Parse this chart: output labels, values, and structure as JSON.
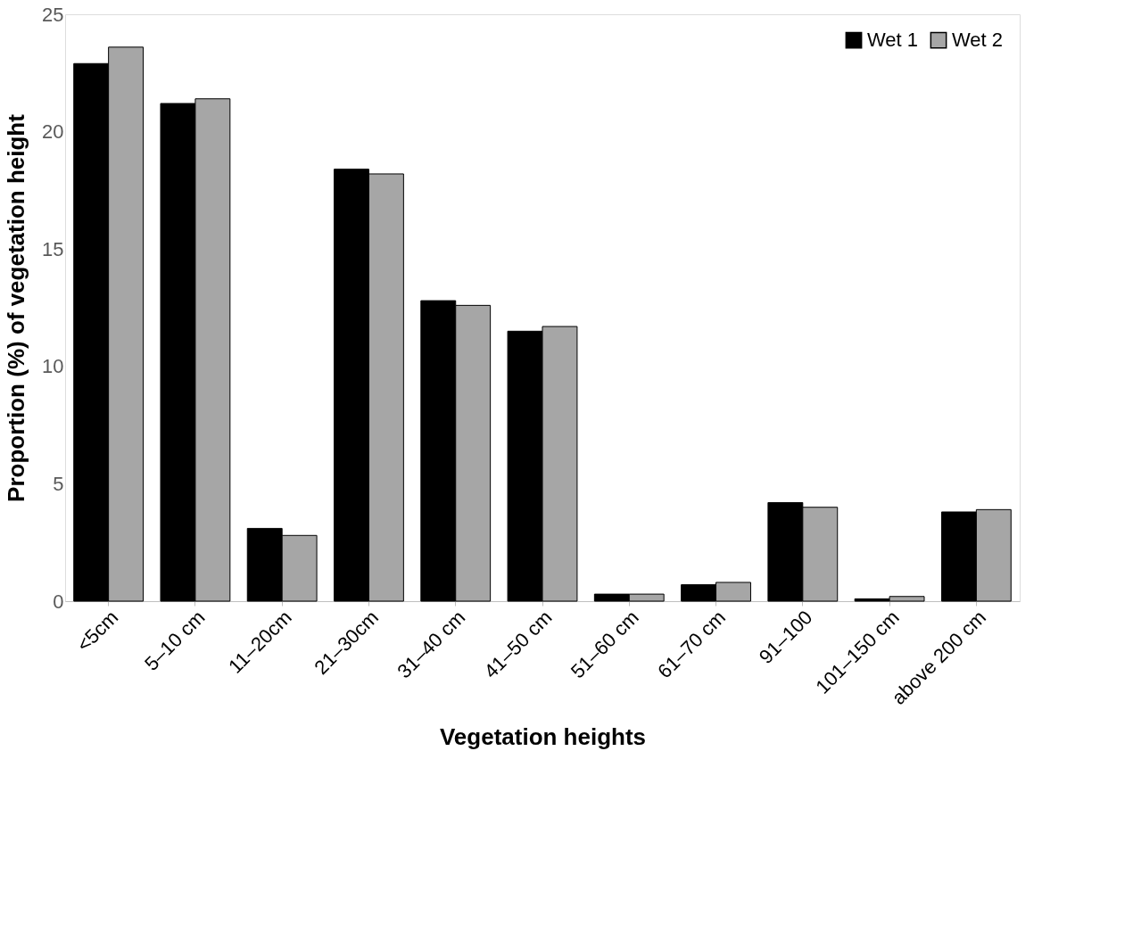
{
  "chart_data": {
    "type": "bar",
    "xlabel": "Vegetation heights",
    "ylabel": "Proportion (%) of vegetation height",
    "categories": [
      "<5cm",
      "5–10 cm",
      "11–20cm",
      "21–30cm",
      "31–40 cm",
      "41–50 cm",
      "51–60 cm",
      "61–70 cm",
      "91–100",
      "101–150 cm",
      "above 200 cm"
    ],
    "series": [
      {
        "name": "Wet 1",
        "color": "#000000",
        "values": [
          22.9,
          21.2,
          3.1,
          18.4,
          12.8,
          11.5,
          0.3,
          0.7,
          4.2,
          0.1,
          3.8
        ]
      },
      {
        "name": "Wet 2",
        "color": "#a6a6a6",
        "values": [
          23.6,
          21.4,
          2.8,
          18.2,
          12.6,
          11.7,
          0.3,
          0.8,
          4.0,
          0.2,
          3.9
        ]
      }
    ],
    "ylim": [
      0,
      25
    ],
    "yticks": [
      0,
      5,
      10,
      15,
      20,
      25
    ],
    "grid": false,
    "legend": "top right"
  }
}
